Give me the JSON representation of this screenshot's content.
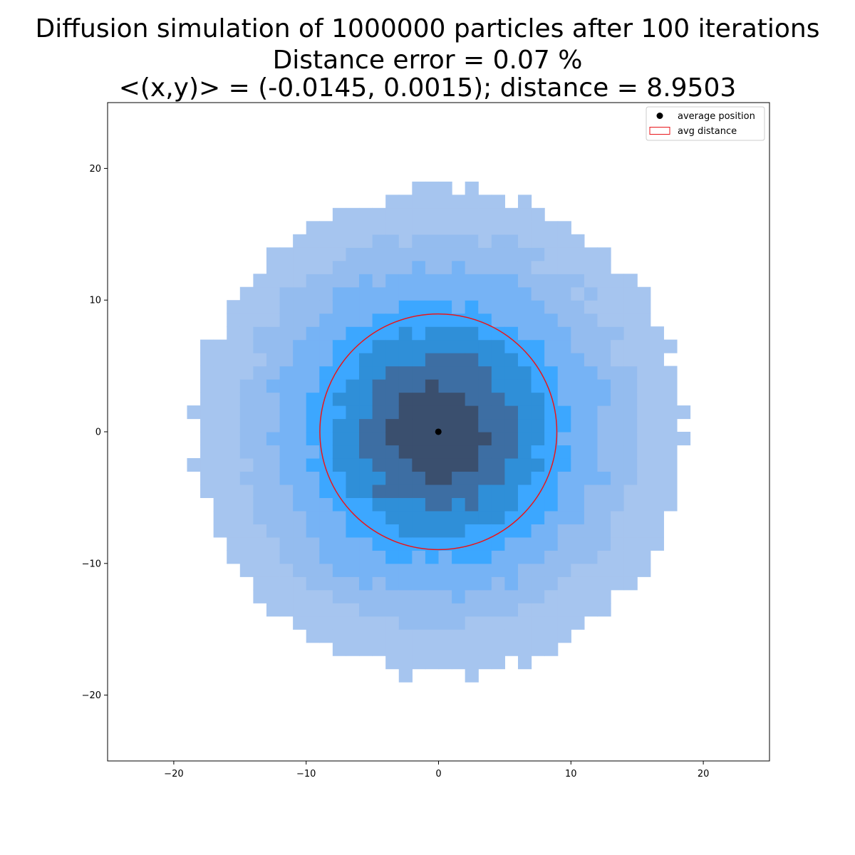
{
  "chart_data": {
    "type": "heatmap",
    "title_lines": [
      "Diffusion simulation of 1000000 particles after 100 iterations",
      "Distance error = 0.07 %",
      "<(x,y)> = (-0.0145, 0.0015); distance = 8.9503"
    ],
    "xlabel": "",
    "ylabel": "",
    "xlim": [
      -25,
      25
    ],
    "ylim": [
      -25,
      25
    ],
    "xticks": [
      -20,
      -10,
      0,
      10,
      20
    ],
    "yticks": [
      -20,
      -10,
      0,
      10,
      20
    ],
    "xtick_labels": [
      "−20",
      "−10",
      "0",
      "10",
      "20"
    ],
    "ytick_labels": [
      "−20",
      "−10",
      "0",
      "10",
      "20"
    ],
    "grid": false,
    "histogram": {
      "bin_width": 1,
      "distribution": "2D random-walk density, roughly gaussian, centered at origin",
      "radius_extent": 19,
      "colors": {
        "low": "#a6c5ef",
        "mid_low": "#76b3f5",
        "mid": "#3ca7ff",
        "mid_high": "#2f8fd8",
        "high": "#3a4f6e"
      }
    },
    "series": [
      {
        "name": "average position",
        "type": "scatter",
        "x": [
          -0.0145
        ],
        "y": [
          0.0015
        ],
        "color": "#000000"
      },
      {
        "name": "avg distance",
        "type": "circle",
        "center": [
          -0.0145,
          0.0015
        ],
        "radius": 8.9503,
        "color": "#e8161b"
      }
    ],
    "legend": {
      "position": "top-right",
      "entries": [
        "average position",
        "avg distance"
      ]
    }
  }
}
